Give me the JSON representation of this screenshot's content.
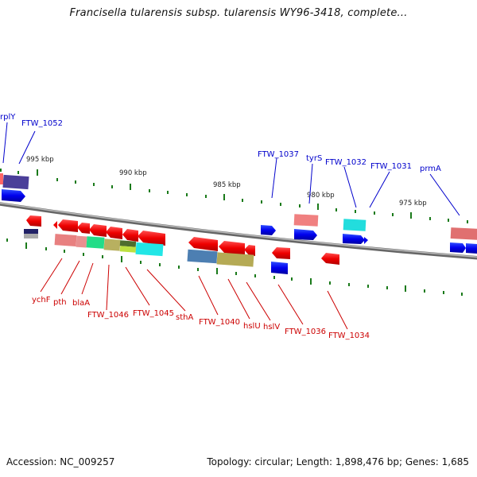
{
  "title": "Francisella tularensis subsp. tularensis WY96-3418, complete...",
  "accession": "Accession: NC_009257",
  "topology": "Topology: circular; Length: 1,898,476 bp; Genes: 1,685",
  "colors": {
    "forward_label": "#0000cc",
    "reverse_label": "#cc0000",
    "backbone": "#888888",
    "tick": "#1a7a1a"
  },
  "scale_labels": [
    "995 kbp",
    "990 kbp",
    "985 kbp",
    "980 kbp",
    "975 kbp"
  ],
  "forward_gene_labels": [
    "rplY",
    "FTW_1052",
    "FTW_1037",
    "tyrS",
    "FTW_1032",
    "FTW_1031",
    "prmA"
  ],
  "reverse_gene_labels": [
    "ychF",
    "pth",
    "blaA",
    "FTW_1046",
    "FTW_1045",
    "sthA",
    "FTW_1040",
    "hslU",
    "hslV",
    "FTW_1036",
    "FTW_1034"
  ]
}
